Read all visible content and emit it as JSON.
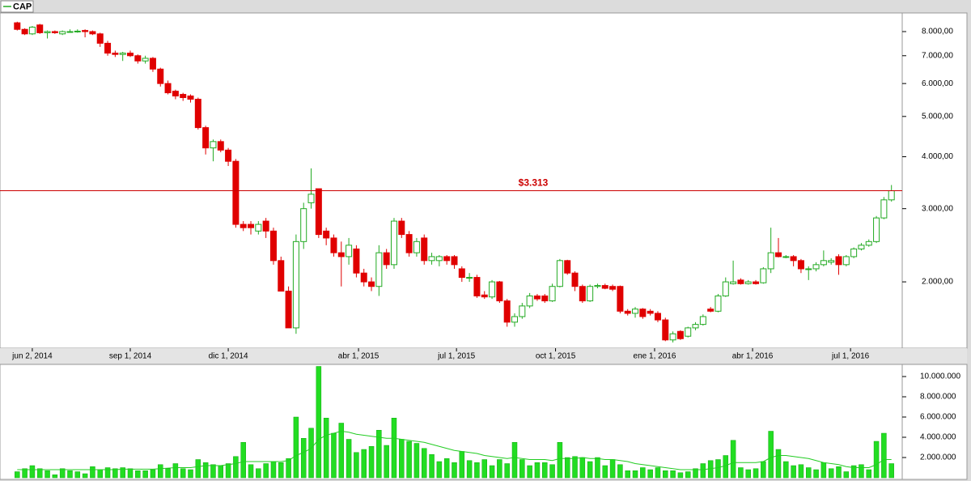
{
  "chart_data": {
    "type": "candlestick",
    "legend": "CAP",
    "legend_corner": "top-left",
    "grid": false,
    "log_scale": true,
    "up_color": "#22aa22",
    "down_color": "#e00000",
    "volume_color": "#22dd22",
    "volume_ma_color": "#22cc22",
    "x": [
      "2014-05-19",
      "2014-05-26",
      "2014-06-02",
      "2014-06-09",
      "2014-06-16",
      "2014-06-23",
      "2014-06-30",
      "2014-07-07",
      "2014-07-14",
      "2014-07-21",
      "2014-07-28",
      "2014-08-04",
      "2014-08-11",
      "2014-08-18",
      "2014-08-25",
      "2014-09-01",
      "2014-09-08",
      "2014-09-15",
      "2014-09-22",
      "2014-09-29",
      "2014-10-06",
      "2014-10-13",
      "2014-10-20",
      "2014-10-27",
      "2014-11-03",
      "2014-11-10",
      "2014-11-17",
      "2014-11-24",
      "2014-12-01",
      "2014-12-08",
      "2014-12-15",
      "2014-12-22",
      "2014-12-29",
      "2015-01-05",
      "2015-01-12",
      "2015-01-19",
      "2015-01-26",
      "2015-02-02",
      "2015-02-09",
      "2015-02-16",
      "2015-02-23",
      "2015-03-02",
      "2015-03-09",
      "2015-03-16",
      "2015-03-23",
      "2015-03-30",
      "2015-04-06",
      "2015-04-13",
      "2015-04-20",
      "2015-04-27",
      "2015-05-04",
      "2015-05-11",
      "2015-05-18",
      "2015-05-25",
      "2015-06-01",
      "2015-06-08",
      "2015-06-15",
      "2015-06-22",
      "2015-06-29",
      "2015-07-06",
      "2015-07-13",
      "2015-07-20",
      "2015-07-27",
      "2015-08-03",
      "2015-08-10",
      "2015-08-17",
      "2015-08-24",
      "2015-08-31",
      "2015-09-07",
      "2015-09-14",
      "2015-09-21",
      "2015-09-28",
      "2015-10-05",
      "2015-10-12",
      "2015-10-19",
      "2015-10-26",
      "2015-11-02",
      "2015-11-09",
      "2015-11-16",
      "2015-11-23",
      "2015-11-30",
      "2015-12-07",
      "2015-12-14",
      "2015-12-21",
      "2015-12-28",
      "2016-01-04",
      "2016-01-11",
      "2016-01-18",
      "2016-01-25",
      "2016-02-01",
      "2016-02-08",
      "2016-02-15",
      "2016-02-22",
      "2016-02-29",
      "2016-03-07",
      "2016-03-14",
      "2016-03-21",
      "2016-03-28",
      "2016-04-04",
      "2016-04-11",
      "2016-04-18",
      "2016-04-25",
      "2016-05-02",
      "2016-05-09",
      "2016-05-16",
      "2016-05-23",
      "2016-05-30",
      "2016-06-06",
      "2016-06-13",
      "2016-06-20",
      "2016-06-27",
      "2016-07-04",
      "2016-07-11",
      "2016-07-18",
      "2016-07-25",
      "2016-08-01",
      "2016-08-08"
    ],
    "open": [
      8400,
      8100,
      7900,
      8300,
      7950,
      8000,
      7900,
      7980,
      8000,
      8050,
      8000,
      7900,
      7500,
      7100,
      7050,
      7100,
      7000,
      6800,
      6900,
      6500,
      6000,
      5750,
      5650,
      5600,
      5500,
      4700,
      4200,
      4350,
      4150,
      3900,
      2750,
      2750,
      2650,
      2800,
      2650,
      2250,
      1900,
      1550,
      2500,
      3100,
      3350,
      2650,
      2550,
      2350,
      2300,
      2400,
      2100,
      2000,
      1950,
      2350,
      2200,
      2800,
      2600,
      2350,
      2550,
      2250,
      2250,
      2300,
      2300,
      2150,
      2050,
      2050,
      1860,
      1840,
      2000,
      1800,
      1600,
      1650,
      1750,
      1850,
      1850,
      1800,
      1950,
      2250,
      2100,
      1950,
      1800,
      1950,
      1960,
      1950,
      1950,
      1700,
      1680,
      1720,
      1700,
      1680,
      1620,
      1450,
      1520,
      1480,
      1550,
      1580,
      1720,
      1700,
      1850,
      1980,
      2020,
      1980,
      2000,
      1990,
      2150,
      2350,
      2300,
      2300,
      2250,
      2150,
      2150,
      2200,
      2230,
      2300,
      2200,
      2300,
      2400,
      2450,
      2500,
      2850,
      3150
    ],
    "high": [
      8450,
      8150,
      8250,
      8350,
      8050,
      8050,
      8050,
      8100,
      8100,
      8100,
      8050,
      7950,
      7600,
      7200,
      7150,
      7200,
      7050,
      7000,
      6950,
      6550,
      6100,
      5800,
      5700,
      5650,
      5550,
      4750,
      4400,
      4400,
      4200,
      3950,
      2800,
      2800,
      2800,
      2850,
      2700,
      2300,
      1950,
      2600,
      3100,
      3750,
      3350,
      2700,
      2600,
      2500,
      2550,
      2450,
      2150,
      2050,
      2450,
      2400,
      2850,
      2850,
      2650,
      2550,
      2600,
      2350,
      2320,
      2320,
      2320,
      2180,
      2100,
      2080,
      1900,
      2020,
      2010,
      1820,
      1680,
      1780,
      1880,
      1870,
      1870,
      1980,
      2270,
      2260,
      2120,
      1970,
      1970,
      1980,
      1980,
      1970,
      1960,
      1720,
      1740,
      1730,
      1720,
      1700,
      1640,
      1520,
      1530,
      1560,
      1600,
      1670,
      1740,
      1870,
      2050,
      2250,
      2040,
      2020,
      2020,
      2170,
      2700,
      2550,
      2320,
      2320,
      2270,
      2180,
      2230,
      2380,
      2280,
      2330,
      2320,
      2420,
      2480,
      2530,
      2880,
      3200,
      3420
    ],
    "low": [
      8050,
      7850,
      7850,
      7900,
      7700,
      7900,
      7850,
      7950,
      7950,
      7750,
      7850,
      7350,
      7000,
      6950,
      6800,
      6950,
      6700,
      6700,
      6400,
      5900,
      5650,
      5500,
      5450,
      5400,
      4650,
      4050,
      3900,
      4100,
      3800,
      2700,
      2650,
      2600,
      2600,
      2550,
      2200,
      1900,
      1550,
      1500,
      2400,
      3000,
      2550,
      2450,
      2300,
      1950,
      2200,
      2050,
      1950,
      1900,
      1850,
      2150,
      2150,
      2550,
      2300,
      2300,
      2200,
      2200,
      2180,
      2200,
      2150,
      2000,
      2000,
      1830,
      1820,
      1820,
      1780,
      1560,
      1560,
      1630,
      1730,
      1800,
      1780,
      1790,
      1940,
      2080,
      1900,
      1780,
      1790,
      1930,
      1920,
      1900,
      1680,
      1660,
      1640,
      1630,
      1660,
      1600,
      1440,
      1430,
      1450,
      1470,
      1530,
      1570,
      1690,
      1690,
      1840,
      1970,
      1970,
      1970,
      1970,
      1980,
      2100,
      2290,
      2280,
      2180,
      2100,
      2020,
      2120,
      2180,
      2200,
      2080,
      2180,
      2280,
      2380,
      2430,
      2480,
      2830,
      3120
    ],
    "close": [
      8100,
      7900,
      8200,
      7950,
      8000,
      7950,
      8000,
      8000,
      8020,
      8000,
      7900,
      7500,
      7100,
      7050,
      7100,
      7000,
      6800,
      6900,
      6500,
      6000,
      5700,
      5600,
      5550,
      5500,
      4700,
      4200,
      4350,
      4150,
      3900,
      2750,
      2700,
      2700,
      2750,
      2650,
      2250,
      1900,
      1550,
      2500,
      3000,
      3250,
      2600,
      2550,
      2350,
      2300,
      2450,
      2100,
      2000,
      1950,
      2350,
      2200,
      2800,
      2600,
      2350,
      2500,
      2250,
      2300,
      2300,
      2250,
      2200,
      2050,
      2050,
      1850,
      1840,
      2000,
      1800,
      1600,
      1650,
      1750,
      1850,
      1820,
      1800,
      1950,
      2250,
      2100,
      1950,
      1800,
      1950,
      1960,
      1930,
      1920,
      1700,
      1680,
      1720,
      1650,
      1680,
      1620,
      1450,
      1500,
      1460,
      1550,
      1580,
      1650,
      1700,
      1850,
      2000,
      2000,
      1980,
      2000,
      1980,
      2150,
      2350,
      2300,
      2300,
      2250,
      2150,
      2150,
      2200,
      2250,
      2250,
      2200,
      2300,
      2400,
      2450,
      2500,
      2850,
      3150,
      3313
    ],
    "volume": [
      600000,
      900000,
      1200000,
      900000,
      700000,
      300000,
      900000,
      700000,
      600000,
      400000,
      1100000,
      800000,
      1000000,
      900000,
      1000000,
      900000,
      700000,
      700000,
      800000,
      1300000,
      900000,
      1400000,
      900000,
      800000,
      1800000,
      1500000,
      1300000,
      1200000,
      1400000,
      2100000,
      3500000,
      1300000,
      900000,
      1400000,
      1600000,
      1500000,
      1900000,
      6000000,
      3900000,
      4900000,
      11000000,
      5900000,
      4400000,
      5400000,
      3800000,
      2500000,
      2800000,
      3100000,
      4700000,
      3200000,
      5900000,
      3800000,
      3600000,
      3400000,
      2900000,
      2300000,
      1600000,
      1900000,
      1500000,
      2600000,
      1700000,
      1500000,
      1800000,
      1200000,
      1800000,
      1400000,
      3500000,
      1800000,
      1200000,
      1500000,
      1500000,
      1300000,
      3500000,
      2000000,
      2100000,
      2000000,
      1600000,
      2000000,
      1200000,
      1800000,
      1300000,
      700000,
      700000,
      1000000,
      800000,
      1000000,
      700000,
      700000,
      500000,
      600000,
      900000,
      1400000,
      1700000,
      1800000,
      2200000,
      3700000,
      1000000,
      800000,
      900000,
      1600000,
      4600000,
      2800000,
      1600000,
      1200000,
      1300000,
      1000000,
      800000,
      1500000,
      900000,
      1100000,
      600000,
      1200000,
      1300000,
      800000,
      3600000,
      4400000,
      1400000
    ],
    "volume_ma": [
      800000,
      800000,
      800000,
      800000,
      800000,
      800000,
      800000,
      800000,
      800000,
      800000,
      800000,
      800000,
      800000,
      800000,
      850000,
      850000,
      850000,
      850000,
      850000,
      900000,
      950000,
      1000000,
      1000000,
      1000000,
      1100000,
      1200000,
      1200000,
      1200000,
      1300000,
      1400000,
      1600000,
      1600000,
      1600000,
      1600000,
      1600000,
      1600000,
      1700000,
      2200000,
      2500000,
      2900000,
      3800000,
      4200000,
      4400000,
      4600000,
      4500000,
      4300000,
      4200000,
      4100000,
      4000000,
      3900000,
      3900000,
      3800000,
      3700000,
      3600000,
      3500000,
      3300000,
      3100000,
      2900000,
      2700000,
      2600000,
      2500000,
      2400000,
      2200000,
      2100000,
      2000000,
      1900000,
      2000000,
      1900000,
      1800000,
      1800000,
      1800000,
      1700000,
      1900000,
      1900000,
      1900000,
      2000000,
      1900000,
      1900000,
      1800000,
      1800000,
      1700000,
      1600000,
      1400000,
      1300000,
      1200000,
      1100000,
      1000000,
      900000,
      800000,
      800000,
      800000,
      800000,
      900000,
      1000000,
      1200000,
      1500000,
      1500000,
      1500000,
      1500000,
      1600000,
      2000000,
      2200000,
      2200000,
      2100000,
      2000000,
      1900000,
      1700000,
      1500000,
      1400000,
      1300000,
      1100000,
      1000000,
      1000000,
      1000000,
      1300000,
      1800000,
      1800000
    ],
    "xlim": [
      "2014-05-03",
      "2016-08-18"
    ],
    "xticks": [
      {
        "value": "2014-06-02",
        "label": "jun 2, 2014"
      },
      {
        "value": "2014-09-01",
        "label": "sep 1, 2014"
      },
      {
        "value": "2014-12-01",
        "label": "dic 1, 2014"
      },
      {
        "value": "2015-04-01",
        "label": "abr 1, 2015"
      },
      {
        "value": "2015-07-01",
        "label": "jul 1, 2015"
      },
      {
        "value": "2015-10-01",
        "label": "oct 1, 2015"
      },
      {
        "value": "2016-01-01",
        "label": "ene 1, 2016"
      },
      {
        "value": "2016-04-01",
        "label": "abr 1, 2016"
      },
      {
        "value": "2016-07-01",
        "label": "jul 1, 2016"
      }
    ],
    "ylim": [
      1385,
      8870
    ],
    "yticks": [
      {
        "value": 2000,
        "label": "2.000,00"
      },
      {
        "value": 3000,
        "label": "3.000,00"
      },
      {
        "value": 4000,
        "label": "4.000,00"
      },
      {
        "value": 5000,
        "label": "5.000,00"
      },
      {
        "value": 6000,
        "label": "6.000,00"
      },
      {
        "value": 7000,
        "label": "7.000,00"
      },
      {
        "value": 8000,
        "label": "8.000,00"
      }
    ],
    "y2lim": [
      0,
      11040000
    ],
    "y2ticks": [
      {
        "value": 2000000,
        "label": "2.000.000"
      },
      {
        "value": 4000000,
        "label": "4.000.000"
      },
      {
        "value": 6000000,
        "label": "6.000.000"
      },
      {
        "value": 8000000,
        "label": "8.000.000"
      },
      {
        "value": 10000000,
        "label": "10.000.000"
      }
    ],
    "annotation": {
      "value": 3313,
      "label": "$3.313",
      "color": "#cc0000"
    }
  }
}
